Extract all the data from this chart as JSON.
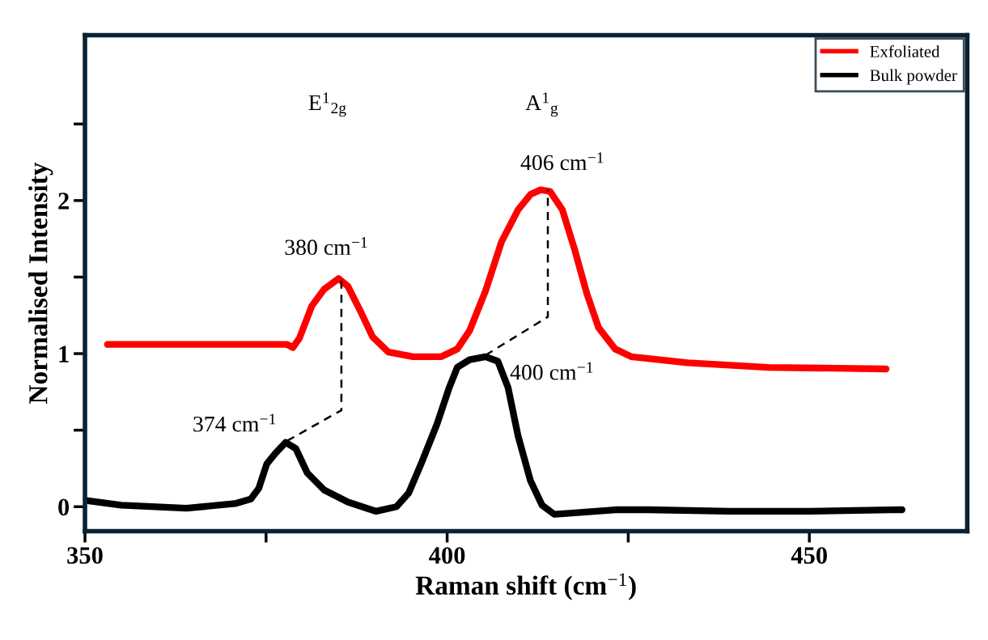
{
  "chart_data": {
    "type": "line",
    "xlabel": "Raman shift (cm$^{−1}$)",
    "ylabel": "Normalised Intensity",
    "xlim": [
      350,
      471.8
    ],
    "xticks": [
      350,
      {
        "value": 375,
        "label": null
      },
      400,
      {
        "value": 425,
        "label": null
      },
      450
    ],
    "ylim": [
      -0.16,
      3.08
    ],
    "yticks": [
      0,
      {
        "value": 0.5,
        "label": null
      },
      1,
      {
        "value": 1.5,
        "label": null
      },
      2,
      {
        "value": 2.5,
        "label": null
      }
    ],
    "legend": "top right",
    "grid": false,
    "marker": "none",
    "line_style": "solid",
    "series": [
      {
        "name": "Exfoliated",
        "color": "#ff0000",
        "x": [
          353.1,
          360.6,
          371.8,
          377.9,
          378.7,
          379.6,
          381.3,
          383.0,
          385.0,
          386.3,
          388.0,
          389.7,
          391.9,
          395.3,
          399.2,
          401.4,
          403.1,
          405.3,
          407.5,
          409.8,
          411.5,
          412.9,
          414.2,
          415.9,
          417.6,
          419.3,
          420.9,
          423.2,
          425.4,
          433.2,
          444.4,
          460.6
        ],
        "values": [
          1.06,
          1.06,
          1.06,
          1.06,
          1.04,
          1.1,
          1.31,
          1.42,
          1.49,
          1.44,
          1.28,
          1.11,
          1.01,
          0.98,
          0.98,
          1.03,
          1.15,
          1.41,
          1.73,
          1.94,
          2.04,
          2.07,
          2.06,
          1.94,
          1.68,
          1.39,
          1.17,
          1.03,
          0.98,
          0.94,
          0.91,
          0.9
        ]
      },
      {
        "name": "Bulk powder",
        "color": "#000000",
        "x": [
          350.2,
          355.0,
          364.0,
          370.7,
          372.9,
          374.0,
          375.1,
          376.3,
          377.7,
          379.1,
          380.7,
          383.0,
          386.3,
          390.2,
          393.0,
          394.7,
          396.4,
          398.6,
          400.3,
          401.4,
          403.1,
          405.3,
          407.0,
          408.4,
          409.8,
          411.5,
          413.1,
          414.8,
          417.6,
          423.2,
          427.7,
          438.8,
          450.0,
          461.2,
          462.8
        ],
        "values": [
          0.04,
          0.01,
          -0.01,
          0.02,
          0.05,
          0.12,
          0.28,
          0.35,
          0.42,
          0.38,
          0.22,
          0.11,
          0.03,
          -0.03,
          0.0,
          0.09,
          0.28,
          0.54,
          0.78,
          0.91,
          0.96,
          0.98,
          0.95,
          0.78,
          0.46,
          0.17,
          0.01,
          -0.05,
          -0.04,
          -0.02,
          -0.02,
          -0.03,
          -0.03,
          -0.02,
          -0.02
        ]
      },
      {
        "color": "#000000",
        "line_style": "dashed",
        "x": [
          377.9,
          385.4,
          385.4
        ],
        "values": [
          0.43,
          0.63,
          1.49
        ]
      },
      {
        "color": "#000000",
        "line_style": "dashed",
        "x": [
          405.3,
          413.9,
          413.9
        ],
        "values": [
          0.99,
          1.24,
          2.07
        ]
      }
    ],
    "annotations": [
      "E$^{1}$$_{2g}$",
      "A$^{1}$$_{g}$",
      {
        "text": "380 cm$^{−1}$",
        "x": 385.0,
        "y": 1.49
      },
      {
        "text": "406 cm$^{−1}$",
        "x": 412.9,
        "y": 2.07
      },
      {
        "text": "400 cm$^{−1}$",
        "x": 405.3,
        "y": 0.98
      },
      {
        "text": "374 cm$^{−1}$",
        "x": 377.7,
        "y": 0.42
      }
    ]
  }
}
